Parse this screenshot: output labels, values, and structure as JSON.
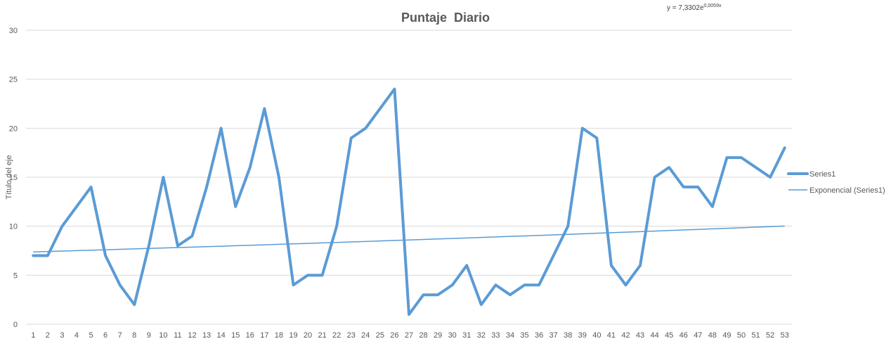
{
  "chart_data": {
    "type": "line",
    "title": "Puntaje  Diario",
    "xlabel": "",
    "ylabel": "Título del eje",
    "ylim": [
      0,
      30
    ],
    "yticks": [
      0,
      5,
      10,
      15,
      20,
      25,
      30
    ],
    "grid": true,
    "legend_placement": "right",
    "x": [
      1,
      2,
      3,
      4,
      5,
      6,
      7,
      8,
      9,
      10,
      11,
      12,
      13,
      14,
      15,
      16,
      17,
      18,
      19,
      20,
      21,
      22,
      23,
      24,
      25,
      26,
      27,
      28,
      29,
      30,
      31,
      32,
      33,
      34,
      35,
      36,
      37,
      38,
      39,
      40,
      41,
      42,
      43,
      44,
      45,
      46,
      47,
      48,
      49,
      50,
      51,
      52,
      53
    ],
    "series": [
      {
        "name": "Series1",
        "color": "#5b9bd5",
        "values": [
          7,
          7,
          10,
          12,
          14,
          7,
          4,
          2,
          8,
          15,
          8,
          9,
          14,
          20,
          12,
          16,
          22,
          15,
          4,
          5,
          5,
          10,
          19,
          20,
          22,
          24,
          1,
          3,
          3,
          4,
          6,
          2,
          4,
          3,
          4,
          4,
          7,
          10,
          20,
          19,
          6,
          4,
          6,
          15,
          16,
          14,
          14,
          12,
          17,
          17,
          16,
          15,
          18
        ]
      }
    ],
    "trendline": {
      "name": "Exponencial (Series1)",
      "color": "#5b9bd5",
      "coefficient": 7.3302,
      "exponent": 0.0059,
      "equation_base": "y = 7,3302e",
      "equation_exp": "0,0059x"
    }
  }
}
